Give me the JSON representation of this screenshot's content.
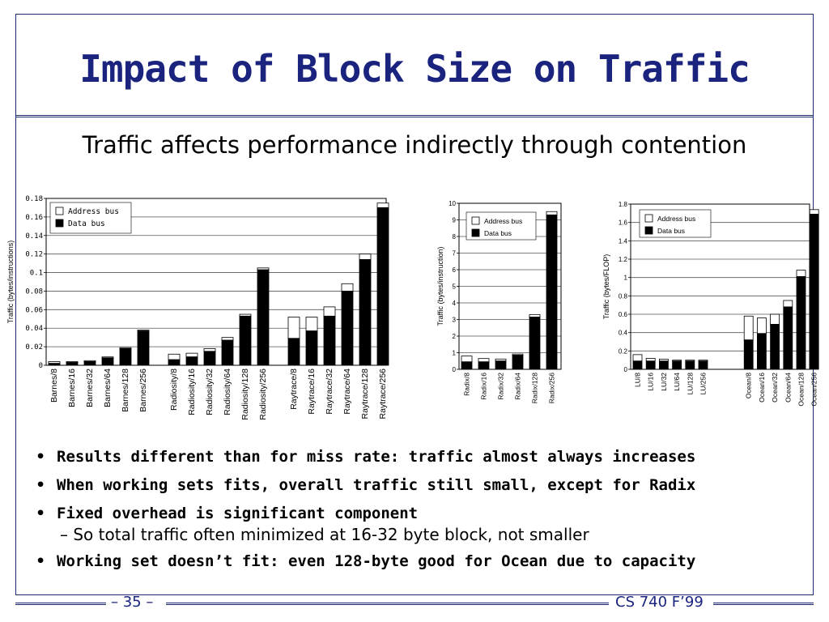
{
  "slide": {
    "title": "Impact of Block Size on Traffic",
    "subtitle": "Traffic affects performance indirectly through contention",
    "bullets": [
      "Results different than for miss rate: traffic almost always increases",
      "When working sets fits, overall traffic still small, except for Radix",
      "Fixed overhead is significant component"
    ],
    "sub_bullet": "So total traffic often minimized at 16-32 byte block, not smaller",
    "last_bullet": "Working set doesn’t fit: even 128-byte good for Ocean due to capacity",
    "page_number": "– 35 –",
    "course": "CS 740 F’99",
    "bullet_glyph": "•",
    "dash_glyph": "–"
  },
  "colors": {
    "accent": "#1a237e",
    "data_bus": "#000000",
    "address_bus": "#ffffff"
  },
  "chart_data": [
    {
      "type": "bar",
      "stacked": true,
      "ylabel": "Traffic (bytes/instructions)",
      "ylim": [
        0,
        0.18
      ],
      "y_ticks": [
        0,
        0.02,
        0.04,
        0.06,
        0.08,
        0.1,
        0.12,
        0.14,
        0.16,
        0.18
      ],
      "y_tick_labels": [
        "0",
        "0.02",
        "0.04",
        "0.06",
        "0.08",
        "0.1",
        "0.12",
        "0.14",
        "0.16",
        "0.18"
      ],
      "grid": true,
      "legend": [
        "Address bus",
        "Data bus"
      ],
      "legend_position": "top-left",
      "groups": [
        {
          "categories": [
            "Barnes/8",
            "Barnes/16",
            "Barnes/32",
            "Barnes/64",
            "Barnes/128",
            "Barnes/256"
          ],
          "data_bus": [
            0.002,
            0.003,
            0.004,
            0.008,
            0.018,
            0.037
          ],
          "address_bus": [
            0.002,
            0.001,
            0.001,
            0.001,
            0.001,
            0.001
          ]
        },
        {
          "categories": [
            "Radiosity/8",
            "Radiosity/16",
            "Radiosity/32",
            "Radiosity/64",
            "Radiosity/128",
            "Radiosity/256"
          ],
          "data_bus": [
            0.006,
            0.009,
            0.015,
            0.027,
            0.053,
            0.103
          ],
          "address_bus": [
            0.006,
            0.004,
            0.003,
            0.003,
            0.002,
            0.002
          ]
        },
        {
          "categories": [
            "Raytrace/8",
            "Raytrace/16",
            "Raytrace/32",
            "Raytrace/64",
            "Raytrace/128",
            "Raytrace/256"
          ],
          "data_bus": [
            0.029,
            0.037,
            0.053,
            0.08,
            0.114,
            0.17
          ],
          "address_bus": [
            0.023,
            0.015,
            0.01,
            0.008,
            0.006,
            0.005
          ]
        }
      ]
    },
    {
      "type": "bar",
      "stacked": true,
      "ylabel": "Traffic (bytes/instruction)",
      "ylim": [
        0,
        10
      ],
      "y_ticks": [
        0,
        1,
        2,
        3,
        4,
        5,
        6,
        7,
        8,
        9,
        10
      ],
      "y_tick_labels": [
        "0",
        "1",
        "2",
        "3",
        "4",
        "5",
        "6",
        "7",
        "8",
        "9",
        "10"
      ],
      "grid": true,
      "legend": [
        "Address bus",
        "Data bus"
      ],
      "legend_position": "top-left",
      "groups": [
        {
          "categories": [
            "Radix/8",
            "Radix/16",
            "Radix/32",
            "Radix/64",
            "Radix/128",
            "Radix/256"
          ],
          "data_bus": [
            0.45,
            0.45,
            0.5,
            0.85,
            3.15,
            9.3
          ],
          "address_bus": [
            0.35,
            0.2,
            0.12,
            0.07,
            0.15,
            0.2
          ]
        }
      ]
    },
    {
      "type": "bar",
      "stacked": true,
      "ylabel": "Traffic (bytes/FLOP)",
      "ylim": [
        0,
        1.8
      ],
      "y_ticks": [
        0,
        0.2,
        0.4,
        0.6,
        0.8,
        1,
        1.2,
        1.4,
        1.6,
        1.8
      ],
      "y_tick_labels": [
        "0",
        "0.2",
        "0.4",
        "0.6",
        "0.8",
        "1",
        "1.2",
        "1.4",
        "1.6",
        "1.8"
      ],
      "grid": true,
      "legend": [
        "Address bus",
        "Data bus"
      ],
      "legend_position": "top-left",
      "groups": [
        {
          "categories": [
            "LU/8",
            "LU/16",
            "LU/32",
            "LU/64",
            "LU/128",
            "LU/256"
          ],
          "data_bus": [
            0.09,
            0.09,
            0.09,
            0.09,
            0.09,
            0.09
          ],
          "address_bus": [
            0.07,
            0.03,
            0.02,
            0.01,
            0.01,
            0.01
          ]
        },
        {
          "categories": [
            "Ocean/8",
            "Ocean/16",
            "Ocean/32",
            "Ocean/64",
            "Ocean/128",
            "Ocean/256"
          ],
          "data_bus": [
            0.32,
            0.39,
            0.49,
            0.68,
            1.01,
            1.69
          ],
          "address_bus": [
            0.26,
            0.17,
            0.11,
            0.07,
            0.07,
            0.05
          ]
        }
      ]
    }
  ]
}
